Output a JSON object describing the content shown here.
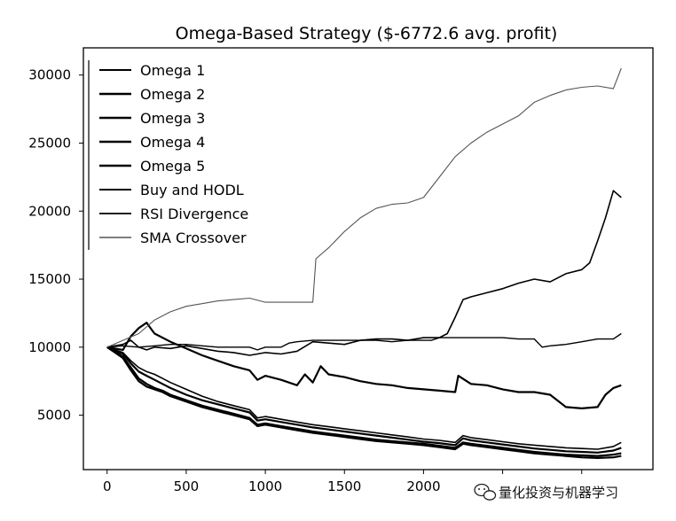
{
  "chart_data": {
    "type": "line",
    "title": "Omega-Based Strategy ($-6772.6 avg. profit)",
    "xlabel": "",
    "ylabel": "",
    "xlim": [
      -150,
      3450
    ],
    "ylim": [
      1000,
      32000
    ],
    "xticks": [
      0,
      500,
      1000,
      1500,
      2000,
      2500,
      3000
    ],
    "xtick_labels": [
      "0",
      "500",
      "1000",
      "1500",
      "2000",
      "",
      ""
    ],
    "yticks": [
      5000,
      10000,
      15000,
      20000,
      25000,
      30000
    ],
    "ytick_labels": [
      "5000",
      "10000",
      "15000",
      "20000",
      "25000",
      "30000"
    ],
    "grid": false,
    "legend_position": "top-left",
    "series": [
      {
        "name": "Omega 1",
        "color": "#000000",
        "width": 1.6,
        "x": [
          0,
          100,
          150,
          200,
          250,
          300,
          350,
          400,
          500,
          600,
          700,
          800,
          900,
          950,
          1000,
          1100,
          1200,
          1300,
          1400,
          1500,
          1600,
          1700,
          1800,
          1900,
          2000,
          2100,
          2200,
          2250,
          2300,
          2400,
          2500,
          2600,
          2700,
          2800,
          2900,
          3000,
          3100,
          3200,
          3250
        ],
        "y": [
          10000,
          9600,
          9000,
          8500,
          8200,
          8000,
          7700,
          7400,
          6900,
          6400,
          6000,
          5700,
          5400,
          4800,
          4900,
          4700,
          4500,
          4300,
          4150,
          4000,
          3850,
          3700,
          3550,
          3400,
          3250,
          3150,
          3000,
          3500,
          3350,
          3200,
          3050,
          2900,
          2800,
          2700,
          2600,
          2550,
          2500,
          2700,
          3000
        ]
      },
      {
        "name": "Omega 2",
        "color": "#000000",
        "width": 2.2,
        "x": [
          0,
          100,
          150,
          200,
          250,
          300,
          350,
          400,
          500,
          600,
          700,
          800,
          900,
          950,
          1000,
          1100,
          1200,
          1300,
          1400,
          1500,
          1600,
          1700,
          1800,
          1900,
          2000,
          2100,
          2200,
          2250,
          2300,
          2400,
          2500,
          2600,
          2700,
          2800,
          2900,
          3000,
          3100,
          3200,
          3250
        ],
        "y": [
          10000,
          9500,
          8800,
          8200,
          7900,
          7600,
          7300,
          7000,
          6500,
          6100,
          5800,
          5500,
          5200,
          4600,
          4700,
          4500,
          4300,
          4100,
          3950,
          3800,
          3650,
          3500,
          3350,
          3200,
          3050,
          2950,
          2800,
          3300,
          3150,
          3000,
          2850,
          2700,
          2550,
          2450,
          2350,
          2300,
          2250,
          2400,
          2600
        ]
      },
      {
        "name": "Omega 3",
        "color": "#000000",
        "width": 2.2,
        "x": [
          0,
          100,
          150,
          200,
          250,
          300,
          350,
          400,
          500,
          600,
          700,
          800,
          900,
          950,
          1000,
          1100,
          1200,
          1300,
          1400,
          1500,
          1600,
          1700,
          1800,
          1900,
          2000,
          2100,
          2200,
          2250,
          2300,
          2400,
          2500,
          2600,
          2700,
          2800,
          2900,
          3000,
          3100,
          3200,
          3250
        ],
        "y": [
          10000,
          9300,
          8500,
          7700,
          7300,
          7000,
          6800,
          6500,
          6100,
          5700,
          5400,
          5100,
          4800,
          4300,
          4400,
          4200,
          4000,
          3800,
          3650,
          3500,
          3350,
          3200,
          3100,
          3000,
          2900,
          2750,
          2600,
          3000,
          2900,
          2750,
          2600,
          2450,
          2300,
          2200,
          2100,
          2050,
          2000,
          2100,
          2200
        ]
      },
      {
        "name": "Omega 4",
        "color": "#000000",
        "width": 2.2,
        "x": [
          0,
          100,
          150,
          200,
          250,
          300,
          350,
          400,
          500,
          600,
          700,
          800,
          900,
          950,
          1000,
          1100,
          1200,
          1300,
          1400,
          1500,
          1600,
          1700,
          1800,
          1900,
          2000,
          2100,
          2200,
          2250,
          2300,
          2400,
          2500,
          2600,
          2700,
          2800,
          2900,
          3000,
          3100,
          3200,
          3250
        ],
        "y": [
          10000,
          9200,
          8300,
          7500,
          7100,
          6900,
          6700,
          6400,
          6000,
          5600,
          5300,
          5000,
          4700,
          4200,
          4300,
          4100,
          3900,
          3700,
          3550,
          3400,
          3250,
          3100,
          3000,
          2900,
          2800,
          2650,
          2500,
          2900,
          2800,
          2650,
          2500,
          2350,
          2200,
          2100,
          2000,
          1900,
          1850,
          1900,
          2000
        ]
      },
      {
        "name": "Omega 5",
        "color": "#000000",
        "width": 2.2,
        "x": [
          0,
          100,
          150,
          200,
          250,
          280,
          300,
          400,
          500,
          600,
          700,
          800,
          900,
          950,
          1000,
          1100,
          1200,
          1250,
          1300,
          1350,
          1400,
          1500,
          1600,
          1700,
          1800,
          1900,
          2000,
          2100,
          2200,
          2220,
          2300,
          2400,
          2500,
          2600,
          2700,
          2800,
          2900,
          3000,
          3100,
          3150,
          3200,
          3250
        ],
        "y": [
          10000,
          9800,
          10800,
          11400,
          11800,
          11300,
          11000,
          10400,
          9900,
          9400,
          9000,
          8600,
          8300,
          7600,
          7900,
          7600,
          7200,
          8000,
          7400,
          8600,
          8000,
          7800,
          7500,
          7300,
          7200,
          7000,
          6900,
          6800,
          6700,
          7900,
          7300,
          7200,
          6900,
          6700,
          6700,
          6500,
          5600,
          5500,
          5600,
          6500,
          7000,
          7200
        ]
      },
      {
        "name": "Buy and HODL",
        "color": "#000000",
        "width": 1.6,
        "x": [
          0,
          100,
          150,
          200,
          250,
          300,
          400,
          500,
          600,
          700,
          800,
          900,
          950,
          1000,
          1100,
          1200,
          1300,
          1400,
          1500,
          1600,
          1700,
          1800,
          1900,
          2000,
          2100,
          2150,
          2200,
          2250,
          2300,
          2400,
          2500,
          2600,
          2700,
          2800,
          2900,
          3000,
          3050,
          3100,
          3150,
          3200,
          3250
        ],
        "y": [
          10000,
          10200,
          10500,
          10000,
          9800,
          10000,
          9900,
          10100,
          9900,
          9700,
          9600,
          9400,
          9500,
          9600,
          9500,
          9700,
          10400,
          10300,
          10200,
          10500,
          10600,
          10600,
          10500,
          10700,
          10700,
          11000,
          12200,
          13500,
          13700,
          14000,
          14300,
          14700,
          15000,
          14800,
          15400,
          15700,
          16200,
          17800,
          19500,
          21500,
          21000
        ]
      },
      {
        "name": "RSI Divergence",
        "color": "#000000",
        "width": 1.4,
        "x": [
          0,
          100,
          200,
          300,
          400,
          500,
          600,
          700,
          800,
          900,
          950,
          1000,
          1100,
          1150,
          1200,
          1300,
          1400,
          1500,
          1600,
          1700,
          1800,
          1900,
          2000,
          2050,
          2100,
          2200,
          2300,
          2400,
          2500,
          2600,
          2700,
          2750,
          2800,
          2900,
          3000,
          3100,
          3200,
          3250
        ],
        "y": [
          10000,
          10100,
          10000,
          10100,
          10200,
          10200,
          10100,
          10000,
          10000,
          10000,
          9800,
          10000,
          10000,
          10300,
          10400,
          10500,
          10500,
          10500,
          10500,
          10500,
          10400,
          10500,
          10500,
          10500,
          10700,
          10700,
          10700,
          10700,
          10700,
          10600,
          10600,
          10000,
          10100,
          10200,
          10400,
          10600,
          10600,
          11000
        ]
      },
      {
        "name": "SMA Crossover",
        "color": "#555555",
        "width": 1.1,
        "x": [
          0,
          100,
          200,
          300,
          400,
          500,
          600,
          700,
          800,
          900,
          1000,
          1100,
          1200,
          1300,
          1320,
          1400,
          1500,
          1600,
          1700,
          1800,
          1900,
          2000,
          2100,
          2200,
          2300,
          2400,
          2500,
          2600,
          2700,
          2800,
          2900,
          3000,
          3100,
          3200,
          3250
        ],
        "y": [
          10000,
          10500,
          11000,
          12000,
          12600,
          13000,
          13200,
          13400,
          13500,
          13600,
          13300,
          13300,
          13300,
          13300,
          16500,
          17300,
          18500,
          19500,
          20200,
          20500,
          20600,
          21000,
          22500,
          24000,
          25000,
          25800,
          26400,
          27000,
          28000,
          28500,
          28900,
          29100,
          29200,
          29000,
          30500
        ]
      }
    ]
  },
  "watermark": {
    "text": "量化投资与机器学习",
    "icon": "wechat-icon"
  }
}
